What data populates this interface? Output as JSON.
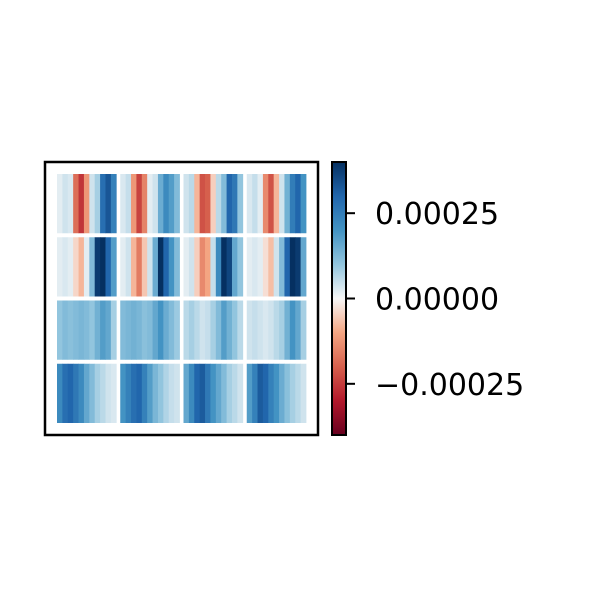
{
  "chart_data": {
    "type": "heatmap",
    "title": "",
    "xlabel": "",
    "ylabel": "",
    "grid": false,
    "layout": "4x4 tiles, each tile shows column stripes",
    "colormap": "RdBu",
    "color_range": [
      -0.0004,
      0.0004
    ],
    "colorbar": {
      "ticks": [
        0.00025,
        0.0,
        -0.00025
      ],
      "tick_labels": [
        "0.00025",
        "0.00000",
        "−0.00025"
      ]
    },
    "tiles": [
      {
        "row": 0,
        "col": 0,
        "values": [
          2e-05,
          4e-05,
          3e-05,
          -0.00018,
          -0.00026,
          -0.00012,
          4e-05,
          8e-05,
          0.00028,
          0.00033,
          0.00024
        ]
      },
      {
        "row": 0,
        "col": 1,
        "values": [
          3e-05,
          5e-05,
          -0.00012,
          -0.00024,
          -0.00015,
          2e-05,
          4e-05,
          0.00015,
          0.00022,
          0.00018,
          0.00012
        ]
      },
      {
        "row": 0,
        "col": 2,
        "values": [
          4e-05,
          6e-05,
          -8e-05,
          -0.00022,
          -0.0002,
          -5e-05,
          6e-05,
          0.00012,
          0.0003,
          0.00026,
          0.0001
        ]
      },
      {
        "row": 0,
        "col": 3,
        "values": [
          3e-05,
          5e-05,
          2e-05,
          -0.00014,
          -0.00022,
          -8e-05,
          4e-05,
          0.00014,
          0.00025,
          0.0003,
          0.0002
        ]
      },
      {
        "row": 1,
        "col": 0,
        "values": [
          2e-05,
          3e-05,
          2e-05,
          -4e-05,
          -8e-05,
          2e-05,
          0.00012,
          0.00038,
          0.0004,
          0.0003,
          0.00018
        ]
      },
      {
        "row": 1,
        "col": 1,
        "values": [
          2e-05,
          4e-05,
          -8e-05,
          -0.00016,
          -6e-05,
          4e-05,
          0.00015,
          0.0004,
          0.0003,
          0.0002,
          0.00012
        ]
      },
      {
        "row": 1,
        "col": 2,
        "values": [
          2e-05,
          4e-05,
          -5e-05,
          -0.00014,
          -0.0001,
          5e-05,
          0.00022,
          0.00042,
          0.00036,
          0.00016,
          0.0001
        ]
      },
      {
        "row": 1,
        "col": 3,
        "values": [
          2e-05,
          3e-05,
          2e-05,
          -3e-05,
          -7e-05,
          4e-05,
          0.00012,
          0.0003,
          0.00042,
          0.00038,
          0.00016
        ]
      },
      {
        "row": 2,
        "col": 0,
        "values": [
          0.0001,
          0.00012,
          0.00011,
          0.00012,
          0.00013,
          0.00012,
          0.0001,
          0.00014,
          0.00018,
          0.00016,
          8e-05
        ]
      },
      {
        "row": 2,
        "col": 1,
        "values": [
          0.00012,
          0.00013,
          0.00014,
          0.00013,
          0.00011,
          0.00012,
          0.00016,
          0.0002,
          0.00015,
          0.00012,
          9e-05
        ]
      },
      {
        "row": 2,
        "col": 2,
        "values": [
          6e-05,
          8e-05,
          6e-05,
          4e-05,
          5e-05,
          8e-05,
          0.00012,
          0.00018,
          0.00014,
          0.0001,
          6e-05
        ]
      },
      {
        "row": 2,
        "col": 3,
        "values": [
          4e-05,
          5e-05,
          4e-05,
          3e-05,
          4e-05,
          6e-05,
          8e-05,
          0.00014,
          0.0002,
          0.00016,
          8e-05
        ]
      },
      {
        "row": 3,
        "col": 0,
        "values": [
          0.00022,
          0.00028,
          0.0003,
          0.00026,
          0.00022,
          0.00016,
          0.00012,
          8e-05,
          6e-05,
          4e-05,
          3e-05
        ]
      },
      {
        "row": 3,
        "col": 1,
        "values": [
          0.0002,
          0.00024,
          0.00028,
          0.0003,
          0.00024,
          0.00018,
          0.00013,
          0.0001,
          7e-05,
          5e-05,
          4e-05
        ]
      },
      {
        "row": 3,
        "col": 2,
        "values": [
          0.00016,
          0.00022,
          0.0003,
          0.00032,
          0.00026,
          0.0002,
          0.00016,
          0.00012,
          8e-05,
          6e-05,
          4e-05
        ]
      },
      {
        "row": 3,
        "col": 3,
        "values": [
          0.00018,
          0.00024,
          0.00032,
          0.0003,
          0.00024,
          0.0002,
          0.00015,
          0.00011,
          8e-05,
          6e-05,
          4e-05
        ]
      }
    ]
  }
}
